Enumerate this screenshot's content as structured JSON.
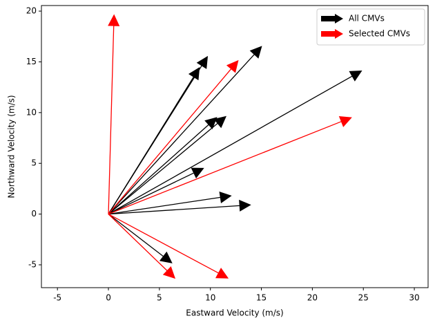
{
  "chart_data": {
    "type": "quiver",
    "x_label": "Eastward Velocity (m/s)",
    "y_label": "Northward Velocity (m/s)",
    "origin": [
      0,
      0
    ],
    "xlim": [
      -6.57,
      31.35
    ],
    "ylim": [
      -7.25,
      20.55
    ],
    "xticks": [
      -5,
      0,
      5,
      10,
      15,
      20,
      25,
      30
    ],
    "yticks": [
      -5,
      0,
      5,
      10,
      15,
      20
    ],
    "legend": "upper right",
    "series": [
      {
        "name": "All CMVs",
        "color": "#000000",
        "u": [
          8.9,
          9.7,
          15.0,
          24.8,
          10.6,
          11.5,
          9.3,
          12.0,
          13.9,
          6.2
        ],
        "v": [
          14.4,
          15.5,
          16.5,
          14.1,
          9.5,
          9.6,
          4.5,
          1.8,
          0.9,
          -4.8
        ]
      },
      {
        "name": "Selected CMVs",
        "color": "#ff0000",
        "u": [
          0.55,
          12.7,
          23.8,
          6.5,
          11.7
        ],
        "v": [
          19.6,
          15.1,
          9.5,
          -6.3,
          -6.3
        ]
      }
    ]
  }
}
